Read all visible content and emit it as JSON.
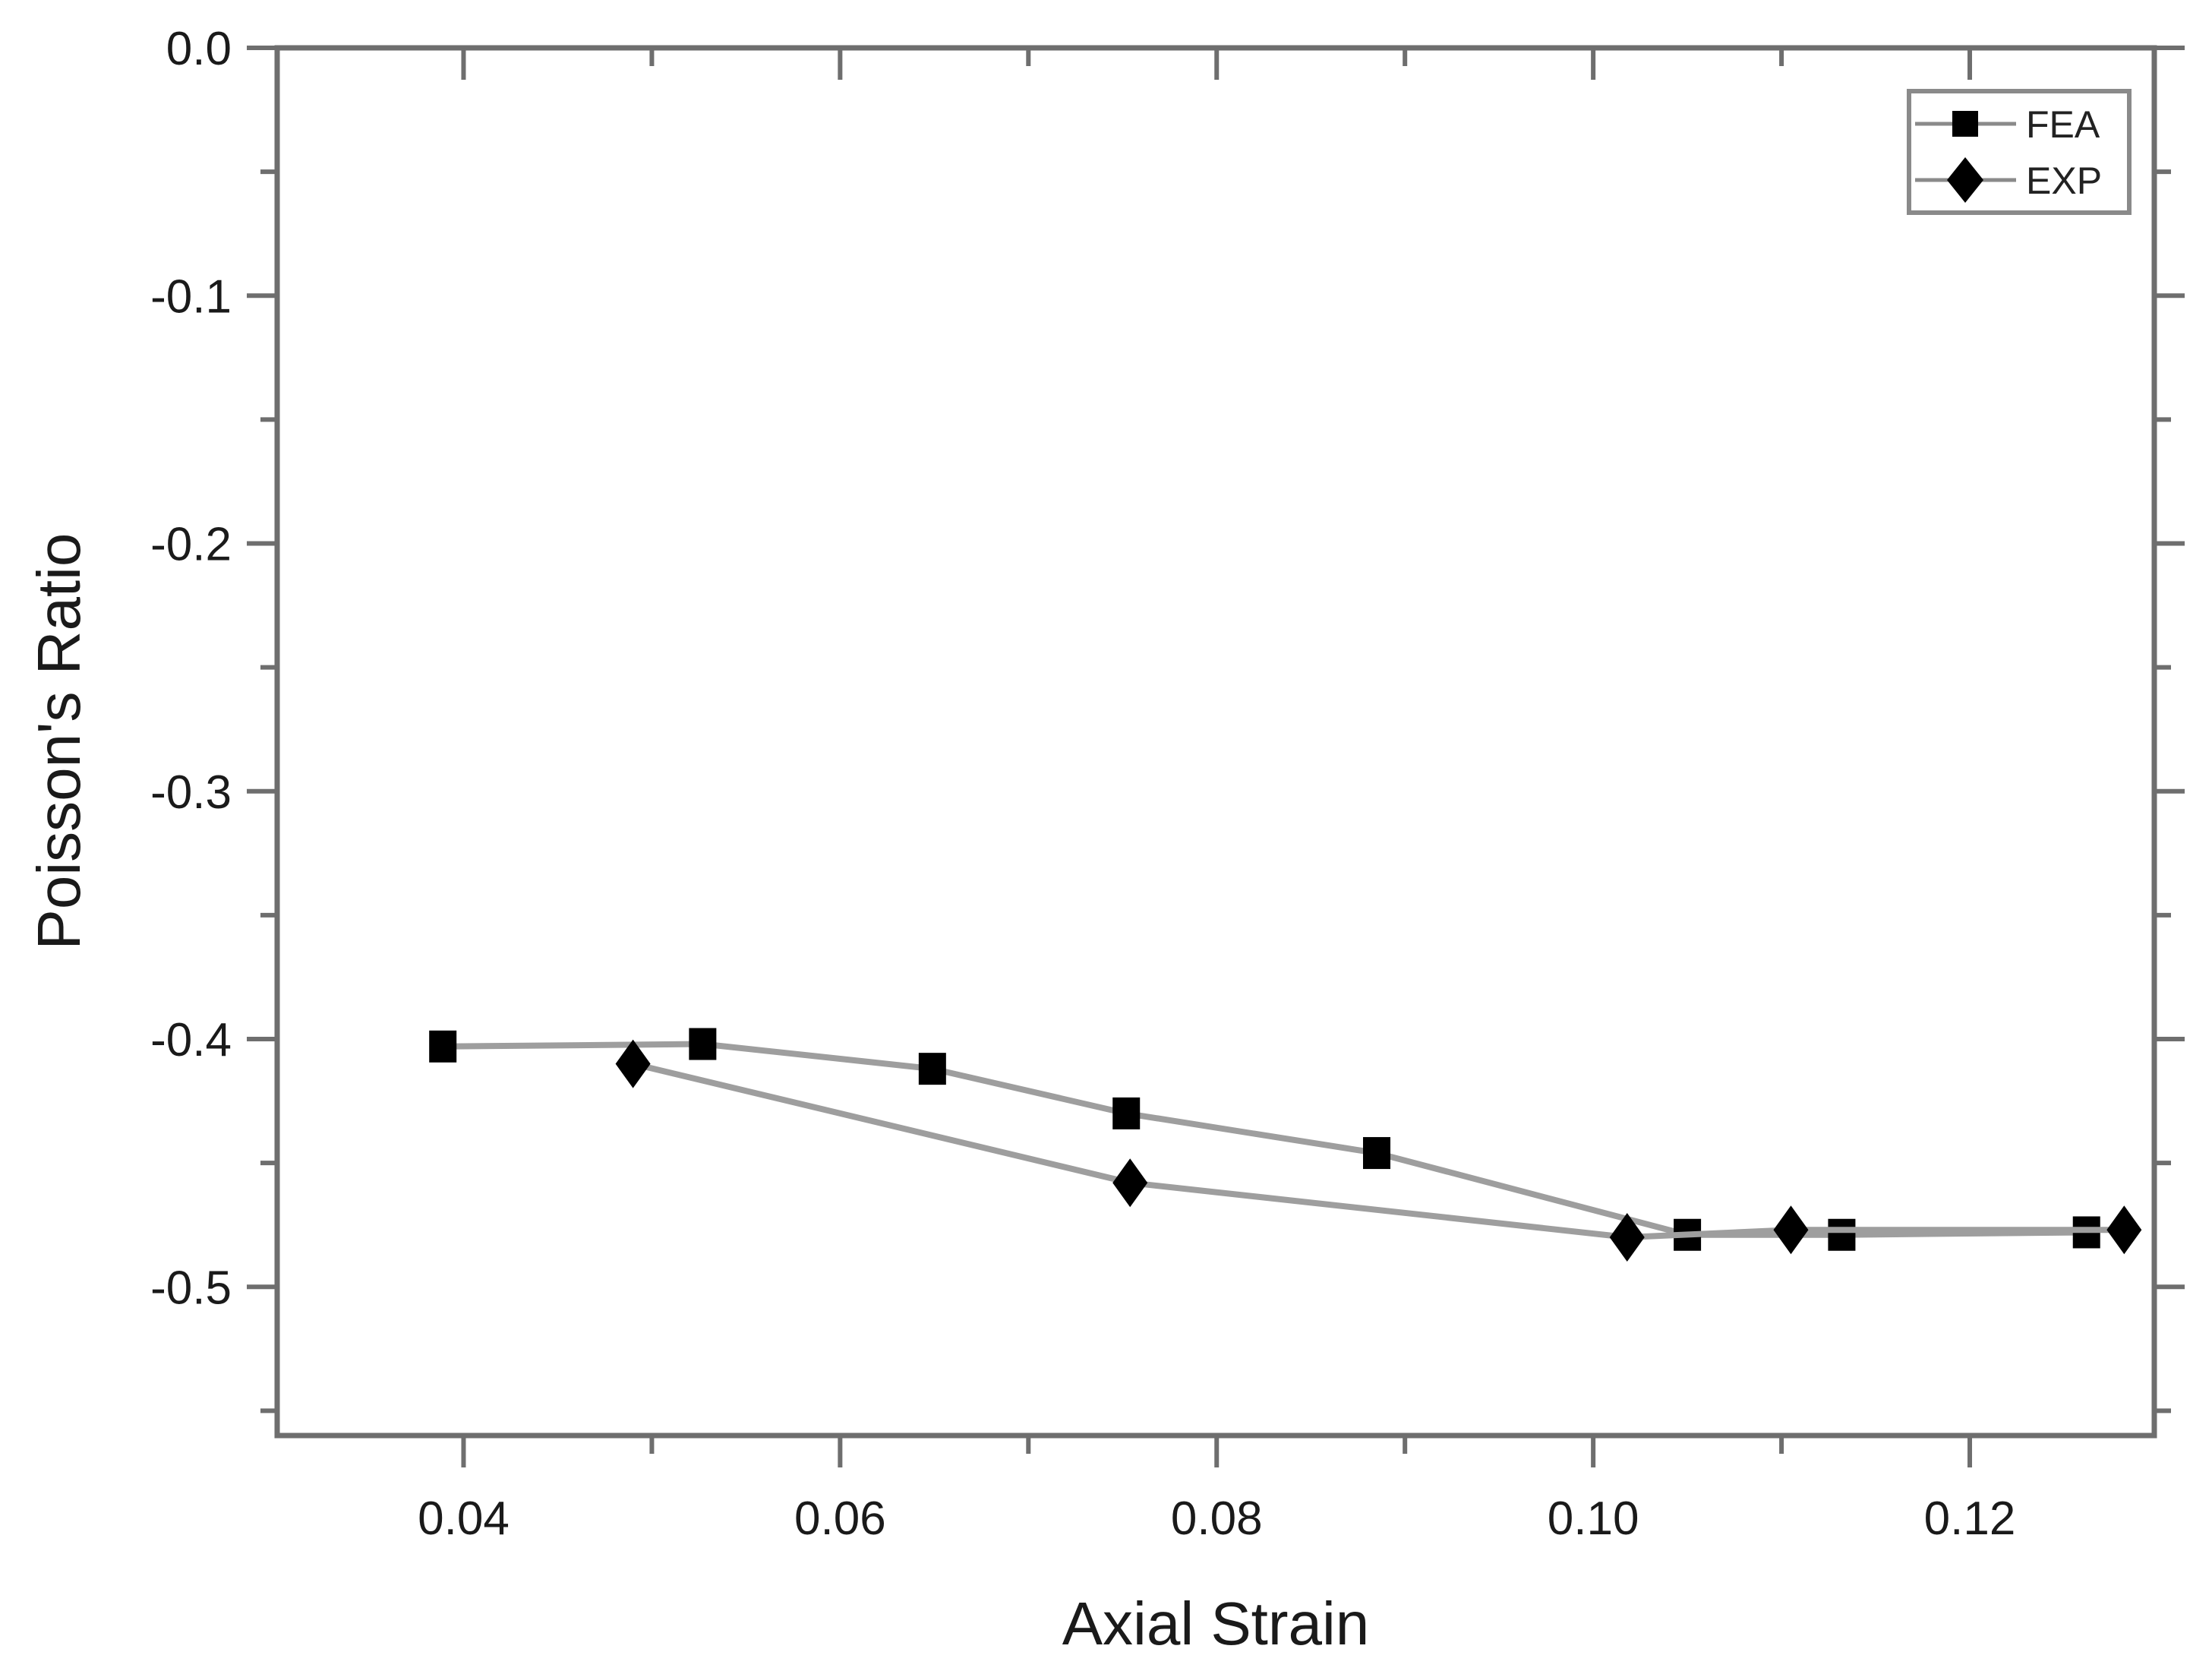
{
  "chart_data": {
    "type": "line",
    "title": "",
    "xlabel": "Axial Strain",
    "ylabel": "Poisson's Ratio",
    "xlim": [
      0.0301,
      0.1298
    ],
    "ylim": [
      -0.56,
      0.0
    ],
    "grid": false,
    "legend_position": "upper right",
    "x_ticks": [
      0.04,
      0.06,
      0.08,
      0.1,
      0.12
    ],
    "x_tick_labels": [
      "0.04",
      "0.06",
      "0.08",
      "0.10",
      "0.12"
    ],
    "y_ticks": [
      0.0,
      -0.1,
      -0.2,
      -0.3,
      -0.4,
      -0.5
    ],
    "y_tick_labels": [
      "0.0",
      "-0.1",
      "-0.2",
      "-0.3",
      "-0.4",
      "-0.5"
    ],
    "series": [
      {
        "name": "FEA",
        "marker": "square",
        "x": [
          0.0389,
          0.0527,
          0.0649,
          0.0752,
          0.0885,
          0.105,
          0.1132,
          0.1262
        ],
        "y": [
          -0.403,
          -0.402,
          -0.412,
          -0.43,
          -0.446,
          -0.479,
          -0.479,
          -0.478
        ]
      },
      {
        "name": "EXP",
        "marker": "diamond",
        "x": [
          0.049,
          0.0754,
          0.1018,
          0.1105,
          0.1282
        ],
        "y": [
          -0.41,
          -0.458,
          -0.48,
          -0.477,
          -0.477
        ]
      }
    ]
  },
  "legend": {
    "items": [
      {
        "label": "FEA",
        "marker": "square"
      },
      {
        "label": "EXP",
        "marker": "diamond"
      }
    ]
  },
  "axes": {
    "x_title": "Axial Strain",
    "y_title": "Poisson's Ratio"
  },
  "colors": {
    "line": "#9e9e9e",
    "marker": "#000000",
    "axis": "#6e6e6e",
    "background": "#ffffff"
  }
}
